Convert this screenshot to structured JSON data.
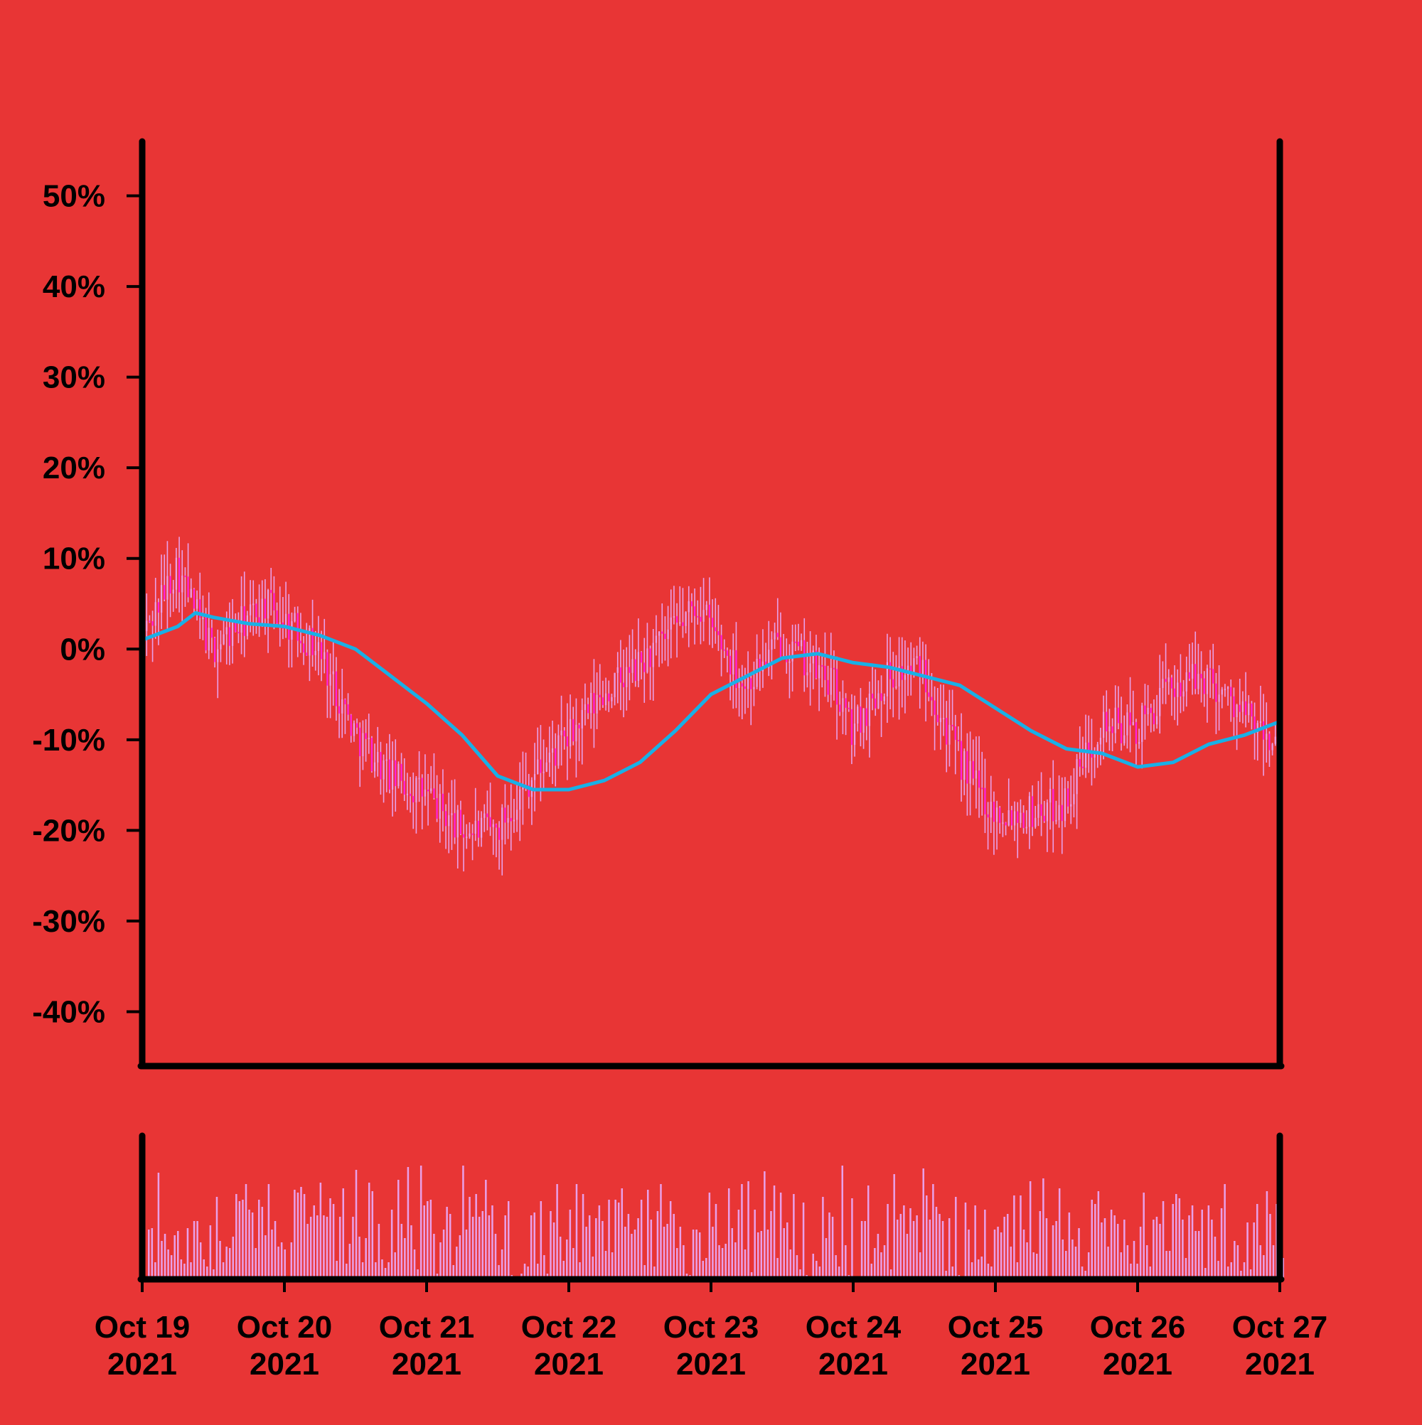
{
  "chart_data": [
    {
      "type": "candlestick",
      "title": "",
      "xlabel": "",
      "ylabel": "",
      "y_ticks": [
        50,
        40,
        30,
        20,
        10,
        0,
        -10,
        -20,
        -30,
        -40
      ],
      "y_tick_labels": [
        "50%",
        "40%",
        "30%",
        "20%",
        "10%",
        "0%",
        "-10%",
        "-20%",
        "-30%",
        "-40%"
      ],
      "ylim": [
        -46,
        56
      ],
      "x_ticks": [
        {
          "date": "2021-10-19",
          "label": [
            "Oct 19",
            "2021"
          ]
        },
        {
          "date": "2021-10-20",
          "label": [
            "Oct 20",
            "2021"
          ]
        },
        {
          "date": "2021-10-21",
          "label": [
            "Oct 21",
            "2021"
          ]
        },
        {
          "date": "2021-10-22",
          "label": [
            "Oct 22",
            "2021"
          ]
        },
        {
          "date": "2021-10-23",
          "label": [
            "Oct 23",
            "2021"
          ]
        },
        {
          "date": "2021-10-24",
          "label": [
            "Oct 24",
            "2021"
          ]
        },
        {
          "date": "2021-10-25",
          "label": [
            "Oct 25",
            "2021"
          ]
        },
        {
          "date": "2021-10-26",
          "label": [
            "Oct 26",
            "2021"
          ]
        },
        {
          "date": "2021-10-27",
          "label": [
            "Oct 27",
            "2021"
          ]
        }
      ],
      "xlim": [
        "2021-10-19",
        "2021-10-27"
      ],
      "candle_interval": "30 min",
      "close_path": [
        [
          "2021-10-19 00:00",
          1
        ],
        [
          "2021-10-19 06:00",
          9
        ],
        [
          "2021-10-19 12:00",
          0
        ],
        [
          "2021-10-19 21:00",
          5
        ],
        [
          "2021-10-20 06:00",
          0
        ],
        [
          "2021-10-20 12:00",
          -9
        ],
        [
          "2021-10-20 18:00",
          -14
        ],
        [
          "2021-10-21 00:00",
          -16
        ],
        [
          "2021-10-21 06:00",
          -20
        ],
        [
          "2021-10-21 12:00",
          -20
        ],
        [
          "2021-10-21 18:00",
          -14
        ],
        [
          "2021-10-22 00:00",
          -10
        ],
        [
          "2021-10-22 06:00",
          -5
        ],
        [
          "2021-10-22 12:00",
          -2
        ],
        [
          "2021-10-22 18:00",
          2
        ],
        [
          "2021-10-22 22:00",
          5
        ],
        [
          "2021-10-23 06:00",
          -4
        ],
        [
          "2021-10-23 12:00",
          1
        ],
        [
          "2021-10-23 21:00",
          -4
        ],
        [
          "2021-10-24 00:00",
          -9
        ],
        [
          "2021-10-24 06:00",
          -3
        ],
        [
          "2021-10-24 12:00",
          -2
        ],
        [
          "2021-10-24 18:00",
          -12
        ],
        [
          "2021-10-25 00:00",
          -18
        ],
        [
          "2021-10-25 06:00",
          -18
        ],
        [
          "2021-10-25 12:00",
          -17
        ],
        [
          "2021-10-25 18:00",
          -8
        ],
        [
          "2021-10-26 00:00",
          -9
        ],
        [
          "2021-10-26 06:00",
          -4
        ],
        [
          "2021-10-26 12:00",
          -3
        ],
        [
          "2021-10-26 18:00",
          -7
        ],
        [
          "2021-10-26 22:00",
          -10
        ],
        [
          "2021-10-27 00:00",
          -10
        ]
      ],
      "series": [
        {
          "kind": "moving_average",
          "color": "#19b0e6",
          "points": [
            [
              "2021-10-19 00:00",
              1
            ],
            [
              "2021-10-19 06:00",
              2.5
            ],
            [
              "2021-10-19 09:00",
              4
            ],
            [
              "2021-10-19 12:00",
              3.5
            ],
            [
              "2021-10-19 18:00",
              2.8
            ],
            [
              "2021-10-20 00:00",
              2.5
            ],
            [
              "2021-10-20 06:00",
              1.5
            ],
            [
              "2021-10-20 12:00",
              0
            ],
            [
              "2021-10-20 18:00",
              -3
            ],
            [
              "2021-10-21 00:00",
              -6
            ],
            [
              "2021-10-21 06:00",
              -9.5
            ],
            [
              "2021-10-21 12:00",
              -14
            ],
            [
              "2021-10-21 18:00",
              -15.5
            ],
            [
              "2021-10-22 00:00",
              -15.5
            ],
            [
              "2021-10-22 06:00",
              -14.5
            ],
            [
              "2021-10-22 12:00",
              -12.5
            ],
            [
              "2021-10-22 18:00",
              -9
            ],
            [
              "2021-10-23 00:00",
              -5
            ],
            [
              "2021-10-23 06:00",
              -3
            ],
            [
              "2021-10-23 12:00",
              -1
            ],
            [
              "2021-10-23 18:00",
              -0.5
            ],
            [
              "2021-10-24 00:00",
              -1.5
            ],
            [
              "2021-10-24 06:00",
              -2
            ],
            [
              "2021-10-24 12:00",
              -3
            ],
            [
              "2021-10-24 18:00",
              -4
            ],
            [
              "2021-10-25 00:00",
              -6.5
            ],
            [
              "2021-10-25 06:00",
              -9
            ],
            [
              "2021-10-25 12:00",
              -11
            ],
            [
              "2021-10-25 18:00",
              -11.5
            ],
            [
              "2021-10-26 00:00",
              -13
            ],
            [
              "2021-10-26 06:00",
              -12.5
            ],
            [
              "2021-10-26 12:00",
              -10.5
            ],
            [
              "2021-10-26 18:00",
              -9.5
            ],
            [
              "2021-10-27 00:00",
              -8
            ]
          ]
        }
      ],
      "colors": {
        "background": "#e83535",
        "candle_up": "#e8a0e8",
        "candle_down": "#ff22dd",
        "wick": "#e8a0e8",
        "moving_average": "#19b0e6",
        "axis": "#000000"
      },
      "grid": false,
      "legend": "none"
    },
    {
      "type": "bar",
      "panel": "volume",
      "title": "",
      "bar_color": "#e8a0e8",
      "ylim": [
        0,
        1
      ],
      "shares_x_with": "price panel",
      "values": [
        0.35,
        0.36,
        0.12,
        0.75,
        0.27,
        0.32,
        0.21,
        0.17,
        0.31,
        0.34,
        0.14,
        0.11,
        0.36,
        0.12,
        0.41,
        0.41,
        0.26,
        0.14,
        0.09,
        0.38,
        0.07,
        0.58,
        0.27,
        0.12,
        0.23,
        0.22,
        0.3,
        0.6,
        0.55,
        0.56,
        0.67,
        0.49,
        0.47,
        0.22,
        0.56,
        0.51,
        0.31,
        0.67,
        0.35,
        0.41,
        0.23,
        0.26,
        0.21,
        0.02,
        0.26,
        0.63,
        0.61,
        0.65,
        0.6,
        0.39,
        0.44,
        0.52,
        0.45,
        0.68,
        0.45,
        0.44,
        0.57,
        0.53,
        0.13,
        0.44,
        0.64,
        0.11,
        0.25,
        0.44,
        0.77,
        0.3,
        0.12,
        0.29,
        0.68,
        0.62,
        0.12,
        0.39,
        0.14,
        0.08,
        0.12,
        0.49,
        0.19,
        0.7,
        0.39,
        0.29,
        0.79,
        0.38,
        0.21,
        0.07,
        0.8,
        0.52,
        0.55,
        0.56,
        0.32,
        0.04,
        0.26,
        0.35,
        0.51,
        0.46,
        0.1,
        0.23,
        0.31,
        0.8,
        0.35,
        0.58,
        0.44,
        0.6,
        0.44,
        0.48,
        0.7,
        0.45,
        0.52,
        0.32,
        0.1,
        0.21,
        0.45,
        0.55,
        0.03,
        0.01,
        0.02,
        0.04,
        0.11,
        0.09,
        0.45,
        0.47,
        0.11,
        0.55,
        0.17,
        0.04,
        0.48,
        0.4,
        0.67,
        0.3,
        0.13,
        0.28,
        0.49,
        0.22,
        0.67,
        0.12,
        0.6,
        0.37,
        0.45,
        0.16,
        0.43,
        0.52,
        0.41,
        0.2,
        0.56,
        0.19,
        0.56,
        0.54,
        0.64,
        0.37,
        0.46,
        0.32,
        0.35,
        0.43,
        0.56,
        0.1,
        0.63,
        0.42,
        0.09,
        0.48,
        0.67,
        0.37,
        0.39,
        0.55,
        0.46,
        0.22,
        0.37,
        0.24,
        0.04,
        0.03,
        0.35,
        0.35,
        0.33,
        0.13,
        0.15,
        0.61,
        0.37,
        0.53,
        0.24,
        0.22,
        0.25,
        0.64,
        0.36,
        0.26,
        0.49,
        0.67,
        0.21,
        0.69,
        0.05,
        0.49,
        0.33,
        0.34,
        0.76,
        0.35,
        0.48,
        0.66,
        0.15,
        0.61,
        0.36,
        0.4,
        0.21,
        0.6,
        0.17,
        0.07,
        0.54,
        0.03,
        0.01,
        0.18,
        0.13,
        0.09,
        0.58,
        0.29,
        0.47,
        0.44,
        0.17,
        0.09,
        0.8,
        0.24,
        0.03,
        0.57,
        0.02,
        0.02,
        0.41,
        0.41,
        0.66,
        0.11,
        0.22,
        0.32,
        0.19,
        0.24,
        0.53,
        0.07,
        0.74,
        0.42,
        0.46,
        0.52,
        0.32,
        0.5,
        0.41,
        0.45,
        0.19,
        0.78,
        0.59,
        0.42,
        0.67,
        0.51,
        0.46,
        0.41,
        0.06,
        0.43,
        0.09,
        0.58,
        0.03,
        0.02,
        0.54,
        0.35,
        0.12,
        0.52,
        0.14,
        0.16,
        0.49,
        0.11,
        0.09,
        0.35,
        0.37,
        0.33,
        0.44,
        0.46,
        0.23,
        0.59,
        0.12,
        0.59,
        0.35,
        0.26,
        0.69,
        0.19,
        0.18,
        0.48,
        0.71,
        0.43,
        0.01,
        0.38,
        0.41,
        0.64,
        0.28,
        0.2,
        0.47,
        0.28,
        0.23,
        0.36,
        0.09,
        0.06,
        0.19,
        0.56,
        0.53,
        0.62,
        0.4,
        0.43,
        0.23,
        0.49,
        0.45,
        0.39,
        0.19,
        0.42,
        0.24,
        0.11,
        0.27,
        0.11,
        0.37,
        0.61,
        0.24,
        0.09,
        0.42,
        0.44,
        0.39,
        0.55,
        0.2,
        0.2,
        0.53,
        0.6,
        0.57,
        0.42,
        0.15,
        0.45,
        0.52,
        0.34,
        0.34,
        0.49,
        0.08,
        0.52,
        0.42,
        0.3,
        0.13,
        0.5,
        0.67,
        0.09,
        0.12,
        0.27,
        0.24,
        0.06,
        0.12,
        0.4,
        0.07,
        0.4,
        0.53,
        0.24,
        0.17,
        0.62,
        0.46,
        0.24,
        0.53,
        0.47,
        0.15
      ]
    }
  ]
}
